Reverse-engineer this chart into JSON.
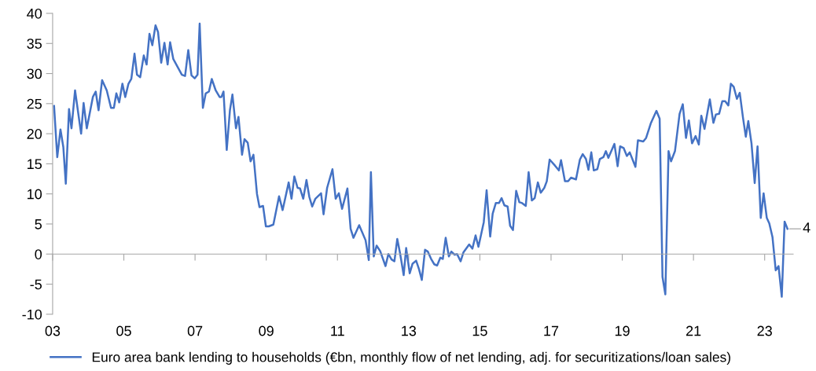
{
  "chart_data": {
    "type": "line",
    "xlim": [
      2003,
      2023.8
    ],
    "ylim": [
      -10,
      40
    ],
    "xticks": [
      {
        "value": 2003,
        "label": "03"
      },
      {
        "value": 2005,
        "label": "05"
      },
      {
        "value": 2007,
        "label": "07"
      },
      {
        "value": 2009,
        "label": "09"
      },
      {
        "value": 2011,
        "label": "11"
      },
      {
        "value": 2013,
        "label": "13"
      },
      {
        "value": 2015,
        "label": "15"
      },
      {
        "value": 2017,
        "label": "17"
      },
      {
        "value": 2019,
        "label": "19"
      },
      {
        "value": 2021,
        "label": "21"
      },
      {
        "value": 2023,
        "label": "23"
      }
    ],
    "yticks": [
      -10,
      -5,
      0,
      5,
      10,
      15,
      20,
      25,
      30,
      35,
      40
    ],
    "legend": "bottom",
    "marker": "none",
    "line_style": "solid",
    "annotations": [
      {
        "text": "4",
        "x": 2023.64,
        "y": 4.2
      }
    ],
    "series": [
      {
        "name": "Euro area bank lending to households (€bn, monthly flow of net lending, adj. for securitizations/loan sales)",
        "color": "#4472c4",
        "x": [
          2003.04,
          2003.13,
          2003.22,
          2003.3,
          2003.37,
          2003.46,
          2003.53,
          2003.63,
          2003.8,
          2003.87,
          2003.96,
          2004.13,
          2004.21,
          2004.29,
          2004.39,
          2004.52,
          2004.64,
          2004.72,
          2004.79,
          2004.87,
          2004.96,
          2005.04,
          2005.13,
          2005.21,
          2005.3,
          2005.37,
          2005.46,
          2005.56,
          2005.64,
          2005.72,
          2005.8,
          2005.89,
          2005.96,
          2006.05,
          2006.14,
          2006.23,
          2006.3,
          2006.39,
          2006.63,
          2006.72,
          2006.81,
          2006.9,
          2006.99,
          2007.07,
          2007.13,
          2007.22,
          2007.3,
          2007.39,
          2007.47,
          2007.58,
          2007.69,
          2007.74,
          2007.8,
          2007.89,
          2007.98,
          2008.05,
          2008.15,
          2008.22,
          2008.32,
          2008.39,
          2008.48,
          2008.56,
          2008.64,
          2008.74,
          2008.81,
          2008.91,
          2008.99,
          2009.07,
          2009.2,
          2009.36,
          2009.46,
          2009.63,
          2009.71,
          2009.79,
          2009.88,
          2009.95,
          2010.04,
          2010.13,
          2010.21,
          2010.29,
          2010.38,
          2010.54,
          2010.61,
          2010.71,
          2010.86,
          2010.95,
          2011.04,
          2011.13,
          2011.28,
          2011.37,
          2011.45,
          2011.61,
          2011.79,
          2011.88,
          2011.94,
          2012.02,
          2012.1,
          2012.2,
          2012.35,
          2012.43,
          2012.52,
          2012.6,
          2012.68,
          2012.76,
          2012.86,
          2012.93,
          2013.03,
          2013.11,
          2013.21,
          2013.29,
          2013.37,
          2013.46,
          2013.54,
          2013.63,
          2013.72,
          2013.8,
          2013.89,
          2013.96,
          2014.04,
          2014.13,
          2014.2,
          2014.29,
          2014.36,
          2014.46,
          2014.54,
          2014.7,
          2014.79,
          2014.88,
          2014.96,
          2015.11,
          2015.19,
          2015.29,
          2015.36,
          2015.45,
          2015.54,
          2015.61,
          2015.69,
          2015.78,
          2015.85,
          2015.93,
          2016.02,
          2016.11,
          2016.18,
          2016.29,
          2016.37,
          2016.46,
          2016.54,
          2016.63,
          2016.71,
          2016.81,
          2016.88,
          2016.96,
          2017.11,
          2017.22,
          2017.28,
          2017.39,
          2017.48,
          2017.56,
          2017.7,
          2017.81,
          2017.89,
          2017.98,
          2018.05,
          2018.13,
          2018.2,
          2018.3,
          2018.37,
          2018.47,
          2018.54,
          2018.61,
          2018.78,
          2018.87,
          2018.94,
          2019.04,
          2019.13,
          2019.21,
          2019.37,
          2019.44,
          2019.59,
          2019.67,
          2019.8,
          2019.96,
          2020.05,
          2020.13,
          2020.21,
          2020.3,
          2020.37,
          2020.48,
          2020.61,
          2020.7,
          2020.79,
          2020.87,
          2020.96,
          2021.06,
          2021.15,
          2021.22,
          2021.31,
          2021.41,
          2021.46,
          2021.56,
          2021.63,
          2021.72,
          2021.81,
          2021.89,
          2021.98,
          2022.05,
          2022.13,
          2022.22,
          2022.3,
          2022.39,
          2022.47,
          2022.54,
          2022.63,
          2022.72,
          2022.8,
          2022.89,
          2022.97,
          2023.06,
          2023.13,
          2023.22,
          2023.31,
          2023.39,
          2023.48,
          2023.56,
          2023.64
        ],
        "values": [
          24.6,
          16.1,
          20.7,
          17.8,
          11.7,
          24.1,
          20.9,
          27.2,
          20.0,
          25.1,
          20.9,
          26.1,
          27.0,
          23.9,
          28.9,
          27.2,
          24.3,
          24.3,
          26.7,
          25.2,
          28.3,
          26.1,
          28.3,
          29.1,
          33.3,
          29.8,
          29.4,
          33.0,
          31.5,
          36.6,
          34.7,
          38.0,
          36.9,
          31.8,
          35.1,
          31.5,
          35.2,
          32.4,
          29.8,
          29.6,
          33.9,
          29.7,
          29.2,
          29.8,
          38.3,
          24.3,
          26.7,
          27.0,
          29.1,
          27.2,
          26.1,
          26.1,
          27.0,
          17.3,
          23.9,
          26.5,
          20.9,
          22.8,
          16.5,
          19.1,
          18.5,
          15.4,
          16.5,
          10.0,
          7.8,
          8.0,
          4.6,
          4.6,
          4.9,
          9.6,
          7.3,
          11.9,
          9.2,
          12.9,
          11.0,
          10.9,
          9.2,
          12.3,
          9.5,
          7.9,
          9.2,
          10.1,
          6.6,
          11.0,
          14.1,
          9.2,
          10.1,
          7.5,
          10.9,
          4.2,
          2.7,
          4.8,
          2.3,
          -1.0,
          13.6,
          -0.4,
          1.4,
          0.5,
          -2.0,
          0.0,
          -0.9,
          -1.2,
          2.5,
          0.1,
          -3.5,
          1.0,
          -3.2,
          -1.6,
          -1.1,
          -2.5,
          -4.3,
          0.7,
          0.4,
          -0.8,
          -1.7,
          -1.9,
          -0.6,
          -0.8,
          2.7,
          -0.4,
          0.4,
          -0.1,
          0.0,
          -1.2,
          0.3,
          1.6,
          0.9,
          3.1,
          1.2,
          5.3,
          10.6,
          2.9,
          6.7,
          8.5,
          8.5,
          9.3,
          8.1,
          7.9,
          4.7,
          4.0,
          10.5,
          8.6,
          8.5,
          8.0,
          13.6,
          8.9,
          9.3,
          11.9,
          10.2,
          11.0,
          12.1,
          15.7,
          14.7,
          13.9,
          15.6,
          12.1,
          12.1,
          12.7,
          12.4,
          15.7,
          16.6,
          15.8,
          14.0,
          16.9,
          13.9,
          14.1,
          15.8,
          16.1,
          17.1,
          16.0,
          18.3,
          14.6,
          17.9,
          17.6,
          16.3,
          16.9,
          14.5,
          18.9,
          18.7,
          19.3,
          21.7,
          23.8,
          22.5,
          -3.8,
          -6.7,
          17.1,
          15.4,
          17.1,
          23.3,
          24.9,
          19.3,
          22.2,
          18.4,
          19.6,
          18.2,
          23.0,
          20.8,
          24.1,
          25.7,
          21.8,
          23.2,
          23.3,
          25.4,
          25.4,
          24.7,
          28.3,
          27.8,
          25.8,
          26.8,
          22.7,
          19.5,
          22.1,
          18.4,
          11.8,
          17.9,
          6.0,
          10.1,
          6.0,
          5.1,
          2.8,
          -2.7,
          -2.0,
          -7.1,
          5.4,
          4.2
        ]
      }
    ]
  }
}
